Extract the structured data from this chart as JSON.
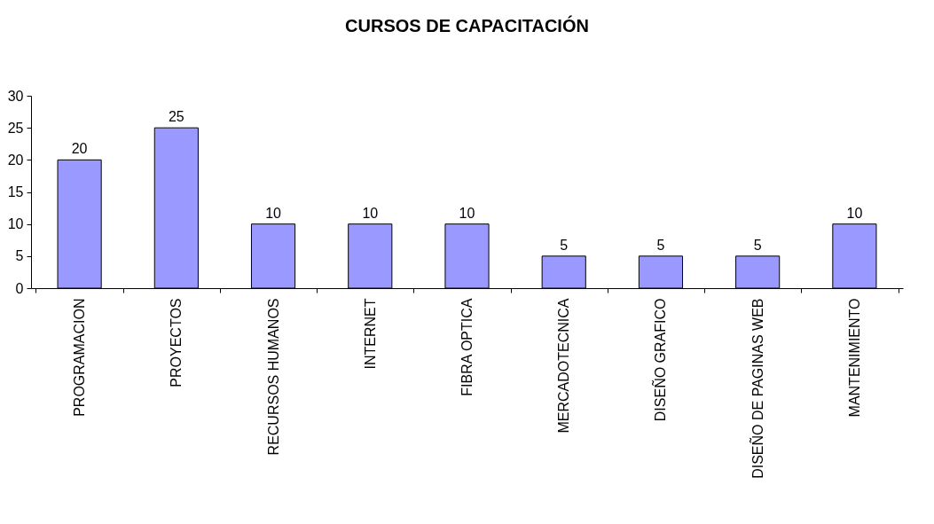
{
  "chart_data": {
    "type": "bar",
    "title": "CURSOS DE CAPACITACIÓN",
    "categories": [
      "PROGRAMACION",
      "PROYECTOS",
      "RECURSOS HUMANOS",
      "INTERNET",
      "FIBRA OPTICA",
      "MERCADOTECNICA",
      "DISEÑO GRAFICO",
      "DISEÑO DE PAGINAS WEB",
      "MANTENIMIENTO"
    ],
    "values": [
      20,
      25,
      10,
      10,
      10,
      5,
      5,
      5,
      10
    ],
    "color": "#9999ff",
    "ylim": [
      0,
      30
    ],
    "yticks": [
      0,
      5,
      10,
      15,
      20,
      25,
      30
    ],
    "grid": false,
    "data_labels": true
  }
}
